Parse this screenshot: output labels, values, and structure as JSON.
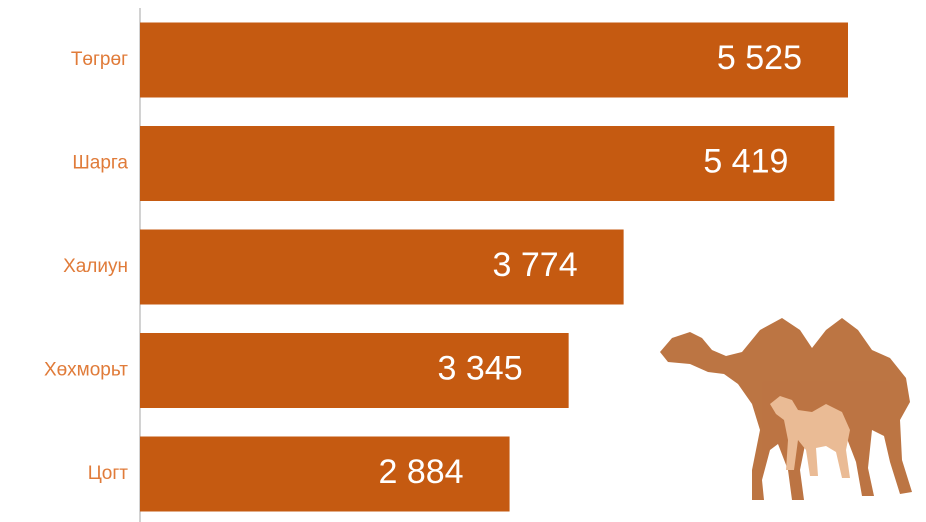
{
  "chart_data": {
    "type": "bar",
    "orientation": "horizontal",
    "categories": [
      "Төгрөг",
      "Шарга",
      "Халиун",
      "Хөхморьт",
      "Цогт"
    ],
    "values": [
      5525,
      5419,
      3774,
      3345,
      2884
    ],
    "value_labels": [
      "5 525",
      "5 419",
      "3 774",
      "3 345",
      "2 884"
    ],
    "color": "#c55a11"
  }
}
